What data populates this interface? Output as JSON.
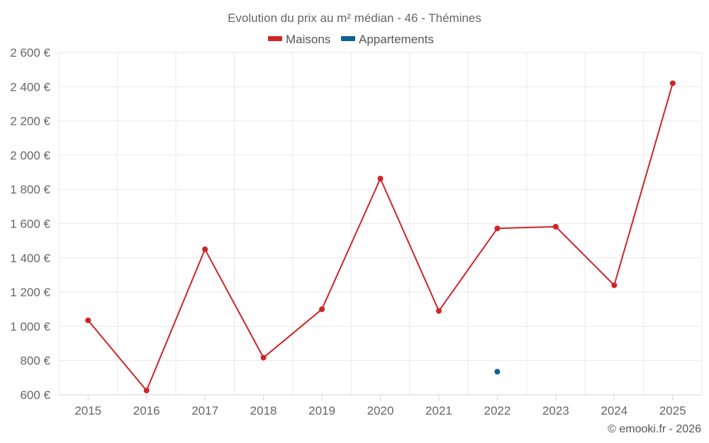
{
  "chart_data": {
    "type": "line",
    "title": "Evolution du prix au m² médian - 46 - Thémines",
    "categories": [
      "2015",
      "2016",
      "2017",
      "2018",
      "2019",
      "2020",
      "2021",
      "2022",
      "2023",
      "2024",
      "2025"
    ],
    "series": [
      {
        "name": "Maisons",
        "color": "#d22328",
        "values": [
          1035,
          625,
          1450,
          817,
          1100,
          1863,
          1090,
          1572,
          1582,
          1240,
          2420
        ]
      },
      {
        "name": "Appartements",
        "color": "#0e6194",
        "values": [
          null,
          null,
          null,
          null,
          null,
          null,
          null,
          735,
          null,
          null,
          null
        ]
      }
    ],
    "ylim": [
      600,
      2600
    ],
    "yticks": [
      600,
      800,
      1000,
      1200,
      1400,
      1600,
      1800,
      2000,
      2200,
      2400,
      2600
    ],
    "ytick_labels": [
      "600 €",
      "800 €",
      "1 000 €",
      "1 200 €",
      "1 400 €",
      "1 600 €",
      "1 800 €",
      "2 000 €",
      "2 200 €",
      "2 400 €",
      "2 600 €"
    ],
    "grid": true,
    "legend_position": "top-center",
    "credit": "© emooki.fr - 2026"
  }
}
